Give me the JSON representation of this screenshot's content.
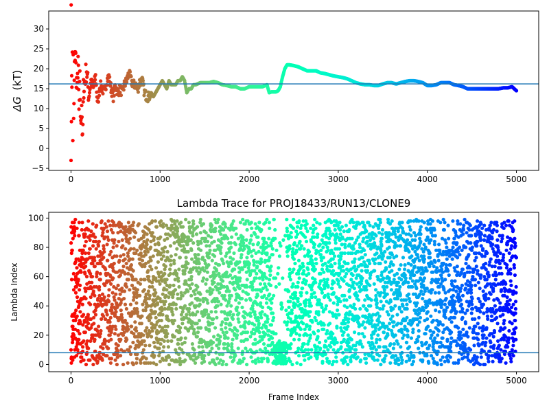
{
  "chart_data": [
    {
      "type": "scatter",
      "title": "",
      "xlabel": "",
      "ylabel": "ΔG (kT)",
      "ylabel_symbol": "ΔG",
      "ylabel_unit": "(kT)",
      "xlim": [
        -250,
        5250
      ],
      "ylim": [
        -5.5,
        34.5
      ],
      "xticks": [
        0,
        1000,
        2000,
        3000,
        4000,
        5000
      ],
      "yticks": [
        -5,
        0,
        5,
        10,
        15,
        20,
        25,
        30
      ],
      "colormap": "rainbow (red at early frames → violet at late frames)",
      "hline": {
        "y": 16.2,
        "color": "#1f77b4"
      },
      "series": [
        {
          "x": [
            0,
            2,
            5,
            8,
            10,
            15,
            20,
            25,
            30,
            40,
            50,
            60,
            70,
            80,
            90,
            100,
            110,
            120,
            130,
            140,
            150,
            175,
            200,
            225,
            250,
            275,
            300,
            325,
            350,
            375,
            400,
            425,
            450,
            475,
            500,
            525,
            550,
            575,
            600,
            625,
            650,
            675,
            700,
            725,
            750,
            775,
            800,
            825,
            850,
            875,
            900,
            925,
            950,
            975,
            1000,
            1025,
            1050,
            1075,
            1100,
            1125,
            1150,
            1175,
            1200,
            1225,
            1250,
            1275,
            1300,
            1325,
            1350,
            1375,
            1400,
            1450,
            1500,
            1550,
            1600,
            1650,
            1700,
            1750,
            1800,
            1850,
            1900,
            1950,
            2000,
            2050,
            2100,
            2150,
            2200,
            2225,
            2250,
            2300,
            2325,
            2350,
            2375,
            2400,
            2425,
            2450,
            2500,
            2550,
            2600,
            2650,
            2700,
            2750,
            2800,
            2850,
            2900,
            2950,
            3000,
            3050,
            3100,
            3150,
            3200,
            3250,
            3300,
            3350,
            3400,
            3450,
            3500,
            3550,
            3600,
            3650,
            3700,
            3750,
            3800,
            3850,
            3900,
            3950,
            4000,
            4050,
            4100,
            4150,
            4200,
            4250,
            4300,
            4350,
            4400,
            4450,
            4500,
            4550,
            4600,
            4650,
            4700,
            4750,
            4800,
            4850,
            4900,
            4950,
            5000
          ],
          "y": [
            0,
            33.5,
            8,
            20,
            14,
            24,
            3,
            22,
            6,
            21,
            25,
            18,
            14,
            23,
            9,
            17,
            5,
            12,
            1,
            15,
            16,
            20,
            13,
            17,
            15,
            18,
            11,
            16,
            15,
            14,
            17,
            18,
            15,
            13,
            16,
            14,
            15,
            14,
            16,
            17,
            19,
            17,
            16,
            16,
            15,
            17,
            17,
            14,
            13,
            13,
            14,
            13,
            14,
            15,
            16,
            17,
            16,
            15,
            17,
            16,
            16,
            16,
            17,
            17,
            18,
            17,
            14,
            15,
            15,
            16,
            16,
            16.5,
            16.5,
            16.5,
            16.8,
            16.5,
            16,
            15.8,
            15.5,
            15.5,
            15,
            15,
            15.5,
            15.5,
            15.5,
            15.5,
            16,
            14,
            14.2,
            14.2,
            14.5,
            15.5,
            18,
            20,
            21,
            21,
            20.8,
            20.5,
            20,
            19.5,
            19.5,
            19.5,
            19,
            18.8,
            18.5,
            18.2,
            18,
            17.8,
            17.5,
            17,
            16.5,
            16.2,
            16,
            16,
            15.8,
            15.8,
            16.2,
            16.5,
            16.5,
            16.2,
            16.5,
            16.8,
            17,
            17,
            16.8,
            16.5,
            15.8,
            15.8,
            16,
            16.5,
            16.5,
            16.5,
            16,
            15.8,
            15.5,
            15,
            15,
            15,
            15,
            15,
            15,
            15,
            15,
            15.2,
            15.2,
            15.5,
            14.5
          ]
        }
      ]
    },
    {
      "type": "scatter",
      "title": "Lambda Trace for PROJ18433/RUN13/CLONE9",
      "xlabel": "Frame Index",
      "ylabel": "Lambda Index",
      "xlim": [
        -250,
        5250
      ],
      "ylim": [
        -4.95,
        103.95
      ],
      "xticks": [
        0,
        1000,
        2000,
        3000,
        4000,
        5000
      ],
      "yticks": [
        0,
        20,
        40,
        60,
        80,
        100
      ],
      "colormap": "rainbow (red at early frames → violet at late frames)",
      "hline": {
        "y": 8,
        "color": "#1f77b4"
      },
      "series": [
        {
          "x_range": [
            0,
            5000
          ],
          "y_range": [
            0,
            99
          ],
          "approx_count": 4500,
          "note_distribution": "values spread across 0–99 throughout; dense cluster around 0–15 near frames 2300–2400"
        }
      ]
    }
  ],
  "colors": {
    "axes": "#000000",
    "hline": "#1f77b4"
  }
}
